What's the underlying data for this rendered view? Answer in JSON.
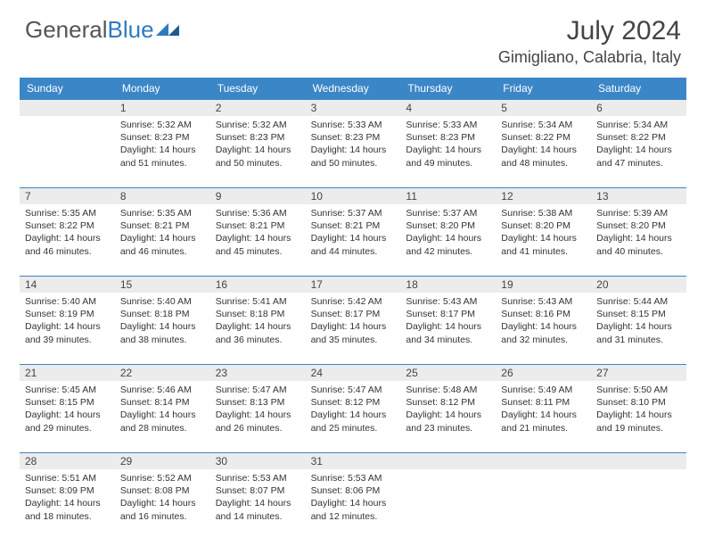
{
  "logo": {
    "part1": "General",
    "part2": "Blue"
  },
  "title": "July 2024",
  "location": "Gimigliano, Calabria, Italy",
  "colors": {
    "header_bg": "#3b86c7",
    "daynum_bg": "#ececec",
    "border": "#3b86c7",
    "text": "#333333"
  },
  "dayNames": [
    "Sunday",
    "Monday",
    "Tuesday",
    "Wednesday",
    "Thursday",
    "Friday",
    "Saturday"
  ],
  "weeks": [
    {
      "nums": [
        "",
        "1",
        "2",
        "3",
        "4",
        "5",
        "6"
      ],
      "cells": [
        null,
        {
          "sunrise": "5:32 AM",
          "sunset": "8:23 PM",
          "daylight": "14 hours and 51 minutes."
        },
        {
          "sunrise": "5:32 AM",
          "sunset": "8:23 PM",
          "daylight": "14 hours and 50 minutes."
        },
        {
          "sunrise": "5:33 AM",
          "sunset": "8:23 PM",
          "daylight": "14 hours and 50 minutes."
        },
        {
          "sunrise": "5:33 AM",
          "sunset": "8:23 PM",
          "daylight": "14 hours and 49 minutes."
        },
        {
          "sunrise": "5:34 AM",
          "sunset": "8:22 PM",
          "daylight": "14 hours and 48 minutes."
        },
        {
          "sunrise": "5:34 AM",
          "sunset": "8:22 PM",
          "daylight": "14 hours and 47 minutes."
        }
      ]
    },
    {
      "nums": [
        "7",
        "8",
        "9",
        "10",
        "11",
        "12",
        "13"
      ],
      "cells": [
        {
          "sunrise": "5:35 AM",
          "sunset": "8:22 PM",
          "daylight": "14 hours and 46 minutes."
        },
        {
          "sunrise": "5:35 AM",
          "sunset": "8:21 PM",
          "daylight": "14 hours and 46 minutes."
        },
        {
          "sunrise": "5:36 AM",
          "sunset": "8:21 PM",
          "daylight": "14 hours and 45 minutes."
        },
        {
          "sunrise": "5:37 AM",
          "sunset": "8:21 PM",
          "daylight": "14 hours and 44 minutes."
        },
        {
          "sunrise": "5:37 AM",
          "sunset": "8:20 PM",
          "daylight": "14 hours and 42 minutes."
        },
        {
          "sunrise": "5:38 AM",
          "sunset": "8:20 PM",
          "daylight": "14 hours and 41 minutes."
        },
        {
          "sunrise": "5:39 AM",
          "sunset": "8:20 PM",
          "daylight": "14 hours and 40 minutes."
        }
      ]
    },
    {
      "nums": [
        "14",
        "15",
        "16",
        "17",
        "18",
        "19",
        "20"
      ],
      "cells": [
        {
          "sunrise": "5:40 AM",
          "sunset": "8:19 PM",
          "daylight": "14 hours and 39 minutes."
        },
        {
          "sunrise": "5:40 AM",
          "sunset": "8:18 PM",
          "daylight": "14 hours and 38 minutes."
        },
        {
          "sunrise": "5:41 AM",
          "sunset": "8:18 PM",
          "daylight": "14 hours and 36 minutes."
        },
        {
          "sunrise": "5:42 AM",
          "sunset": "8:17 PM",
          "daylight": "14 hours and 35 minutes."
        },
        {
          "sunrise": "5:43 AM",
          "sunset": "8:17 PM",
          "daylight": "14 hours and 34 minutes."
        },
        {
          "sunrise": "5:43 AM",
          "sunset": "8:16 PM",
          "daylight": "14 hours and 32 minutes."
        },
        {
          "sunrise": "5:44 AM",
          "sunset": "8:15 PM",
          "daylight": "14 hours and 31 minutes."
        }
      ]
    },
    {
      "nums": [
        "21",
        "22",
        "23",
        "24",
        "25",
        "26",
        "27"
      ],
      "cells": [
        {
          "sunrise": "5:45 AM",
          "sunset": "8:15 PM",
          "daylight": "14 hours and 29 minutes."
        },
        {
          "sunrise": "5:46 AM",
          "sunset": "8:14 PM",
          "daylight": "14 hours and 28 minutes."
        },
        {
          "sunrise": "5:47 AM",
          "sunset": "8:13 PM",
          "daylight": "14 hours and 26 minutes."
        },
        {
          "sunrise": "5:47 AM",
          "sunset": "8:12 PM",
          "daylight": "14 hours and 25 minutes."
        },
        {
          "sunrise": "5:48 AM",
          "sunset": "8:12 PM",
          "daylight": "14 hours and 23 minutes."
        },
        {
          "sunrise": "5:49 AM",
          "sunset": "8:11 PM",
          "daylight": "14 hours and 21 minutes."
        },
        {
          "sunrise": "5:50 AM",
          "sunset": "8:10 PM",
          "daylight": "14 hours and 19 minutes."
        }
      ]
    },
    {
      "nums": [
        "28",
        "29",
        "30",
        "31",
        "",
        "",
        ""
      ],
      "cells": [
        {
          "sunrise": "5:51 AM",
          "sunset": "8:09 PM",
          "daylight": "14 hours and 18 minutes."
        },
        {
          "sunrise": "5:52 AM",
          "sunset": "8:08 PM",
          "daylight": "14 hours and 16 minutes."
        },
        {
          "sunrise": "5:53 AM",
          "sunset": "8:07 PM",
          "daylight": "14 hours and 14 minutes."
        },
        {
          "sunrise": "5:53 AM",
          "sunset": "8:06 PM",
          "daylight": "14 hours and 12 minutes."
        },
        null,
        null,
        null
      ]
    }
  ],
  "labels": {
    "sunrise": "Sunrise: ",
    "sunset": "Sunset: ",
    "daylight": "Daylight: "
  }
}
